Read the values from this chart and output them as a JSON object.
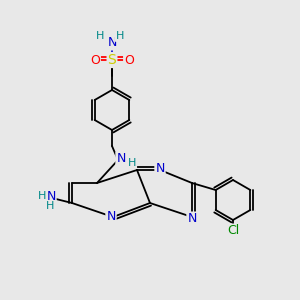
{
  "bg_color": "#e8e8e8",
  "atom_colors": {
    "C": "#000000",
    "N": "#0000cc",
    "O": "#ff0000",
    "S": "#cccc00",
    "Cl": "#008800",
    "H": "#008888"
  }
}
